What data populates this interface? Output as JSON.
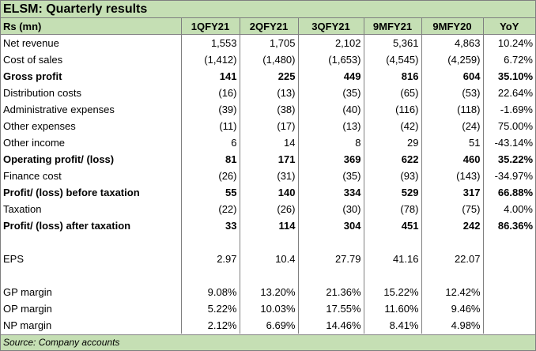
{
  "title": "ELSM: Quarterly results",
  "header": [
    "Rs (mn)",
    "1QFY21",
    "2QFY21",
    "3QFY21",
    "9MFY21",
    "9MFY20",
    "YoY"
  ],
  "rows": [
    {
      "label": "Net revenue",
      "bold": false,
      "values": [
        "1,553",
        "1,705",
        "2,102",
        "5,361",
        "4,863",
        "10.24%"
      ]
    },
    {
      "label": "Cost of sales",
      "bold": false,
      "values": [
        "(1,412)",
        "(1,480)",
        "(1,653)",
        "(4,545)",
        "(4,259)",
        "6.72%"
      ]
    },
    {
      "label": "Gross profit",
      "bold": true,
      "values": [
        "141",
        "225",
        "449",
        "816",
        "604",
        "35.10%"
      ]
    },
    {
      "label": "Distribution costs",
      "bold": false,
      "values": [
        "(16)",
        "(13)",
        "(35)",
        "(65)",
        "(53)",
        "22.64%"
      ]
    },
    {
      "label": "Administrative expenses",
      "bold": false,
      "values": [
        "(39)",
        "(38)",
        "(40)",
        "(116)",
        "(118)",
        "-1.69%"
      ]
    },
    {
      "label": "Other expenses",
      "bold": false,
      "values": [
        "(11)",
        "(17)",
        "(13)",
        "(42)",
        "(24)",
        "75.00%"
      ]
    },
    {
      "label": "Other income",
      "bold": false,
      "values": [
        "6",
        "14",
        "8",
        "29",
        "51",
        "-43.14%"
      ]
    },
    {
      "label": "Operating profit/ (loss)",
      "bold": true,
      "values": [
        "81",
        "171",
        "369",
        "622",
        "460",
        "35.22%"
      ]
    },
    {
      "label": "Finance cost",
      "bold": false,
      "values": [
        "(26)",
        "(31)",
        "(35)",
        "(93)",
        "(143)",
        "-34.97%"
      ]
    },
    {
      "label": "Profit/ (loss) before taxation",
      "bold": true,
      "values": [
        "55",
        "140",
        "334",
        "529",
        "317",
        "66.88%"
      ]
    },
    {
      "label": "Taxation",
      "bold": false,
      "values": [
        "(22)",
        "(26)",
        "(30)",
        "(78)",
        "(75)",
        "4.00%"
      ]
    },
    {
      "label": "Profit/ (loss) after taxation",
      "bold": true,
      "values": [
        "33",
        "114",
        "304",
        "451",
        "242",
        "86.36%"
      ]
    },
    {
      "blank": true
    },
    {
      "label": "EPS",
      "bold": false,
      "values": [
        "2.97",
        "10.4",
        "27.79",
        "41.16",
        "22.07",
        ""
      ]
    },
    {
      "blank": true
    },
    {
      "label": "GP margin",
      "bold": false,
      "values": [
        "9.08%",
        "13.20%",
        "21.36%",
        "15.22%",
        "12.42%",
        ""
      ]
    },
    {
      "label": "OP margin",
      "bold": false,
      "values": [
        "5.22%",
        "10.03%",
        "17.55%",
        "11.60%",
        "9.46%",
        ""
      ]
    },
    {
      "label": "NP margin",
      "bold": false,
      "values": [
        "2.12%",
        "6.69%",
        "14.46%",
        "8.41%",
        "4.98%",
        ""
      ]
    }
  ],
  "source": "Source: Company accounts",
  "colors": {
    "header_bg": "#c5dfb4",
    "border": "#7f7f7f"
  }
}
